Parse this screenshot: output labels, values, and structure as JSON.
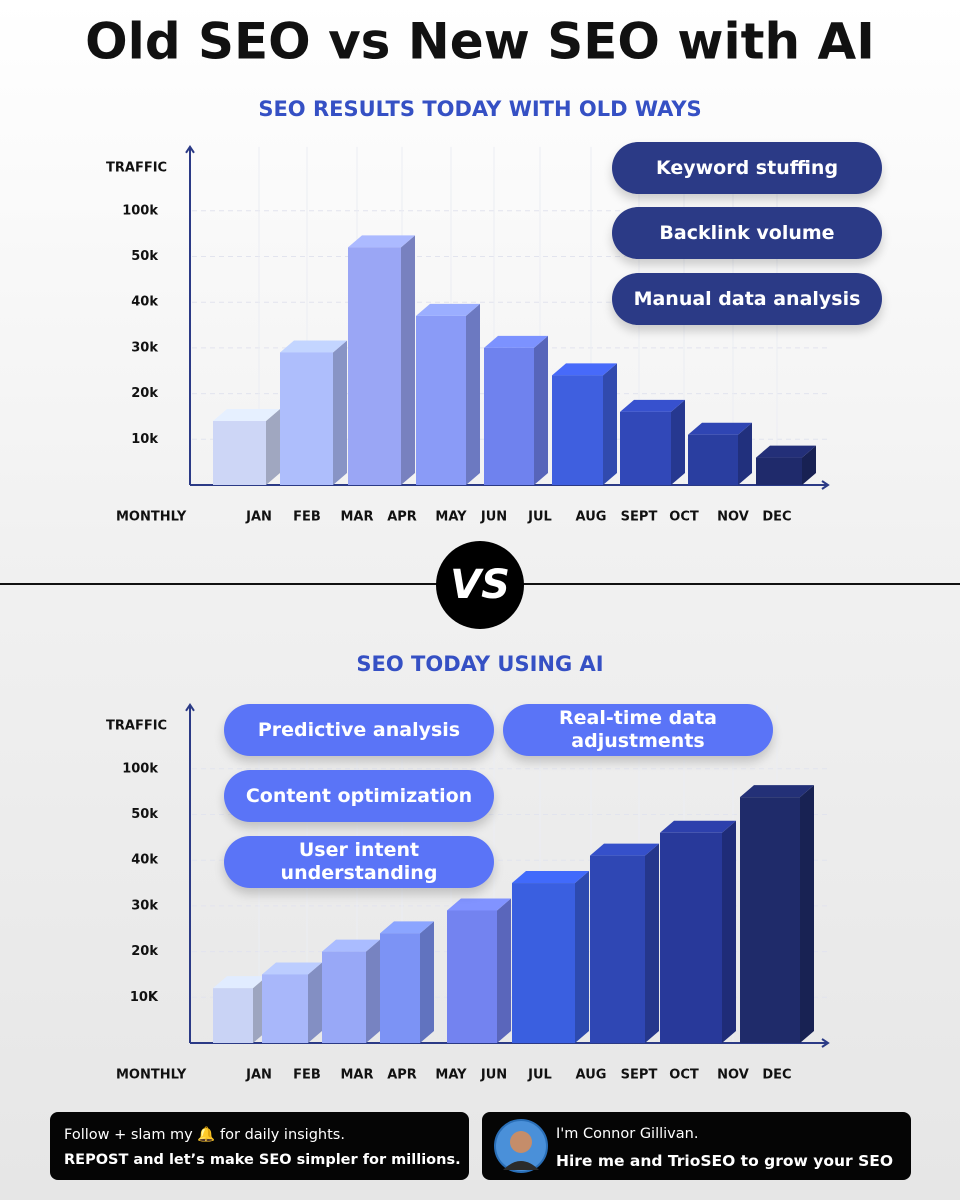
{
  "title": "Old SEO vs New SEO with AI",
  "chart_data": [
    {
      "type": "bar",
      "title": "SEO RESULTS TODAY WITH OLD WAYS",
      "y_label": "TRAFFIC",
      "x_label": "MONTHLY",
      "x_labels": [
        "JAN",
        "FEB",
        "MAR",
        "APR",
        "MAY",
        "JUN",
        "JUL",
        "AUG",
        "SEPT",
        "OCT",
        "NOV",
        "DEC"
      ],
      "values": [
        14000,
        29000,
        60000,
        37000,
        30000,
        24000,
        16000,
        11000,
        6000
      ],
      "colors": [
        "#cdd6f6",
        "#aebefc",
        "#9aa6f5",
        "#8a9bf7",
        "#6f82ee",
        "#3f5fdf",
        "#3148b8",
        "#2a3ea0",
        "#1f2a6b"
      ],
      "ylim": [
        0,
        170000
      ],
      "yticks": [
        {
          "value": 10000,
          "label": "10k"
        },
        {
          "value": 20000,
          "label": "20k"
        },
        {
          "value": 30000,
          "label": "30k"
        },
        {
          "value": 40000,
          "label": "40k"
        },
        {
          "value": 50000,
          "label": "50k"
        },
        {
          "value": 100000,
          "label": "100k"
        }
      ],
      "callouts": [
        "Keyword stuffing",
        "Backlink volume",
        "Manual data analysis"
      ]
    },
    {
      "type": "bar",
      "title": "SEO TODAY USING AI",
      "y_label": "TRAFFIC",
      "x_label": "MONTHLY",
      "x_labels": [
        "JAN",
        "FEB",
        "MAR",
        "APR",
        "MAY",
        "JUN",
        "JUL",
        "AUG",
        "SEPT",
        "OCT",
        "NOV",
        "DEC"
      ],
      "values": [
        12000,
        15000,
        20000,
        24000,
        29000,
        35000,
        41000,
        46000,
        69000
      ],
      "colors": [
        "#c9d3f5",
        "#a8b7fa",
        "#98a8f7",
        "#7c93f5",
        "#7383f0",
        "#3a5fe0",
        "#2f47b4",
        "#28399a",
        "#1f2b6a"
      ],
      "ylim": [
        0,
        170000
      ],
      "yticks": [
        {
          "value": 10000,
          "label": "10K"
        },
        {
          "value": 20000,
          "label": "20k"
        },
        {
          "value": 30000,
          "label": "30k"
        },
        {
          "value": 40000,
          "label": "40k"
        },
        {
          "value": 50000,
          "label": "50k"
        },
        {
          "value": 100000,
          "label": "100k"
        }
      ],
      "callouts": [
        "Predictive analysis",
        "Real-time data adjustments",
        "Content optimization",
        "User intent understanding"
      ]
    }
  ],
  "vs_badge": "VS",
  "footer": {
    "left_lines": [
      "Follow + slam my 🔔 for daily insights.",
      "REPOST and let’s make SEO simpler for millions."
    ],
    "right_lines": [
      "I'm Connor Gillivan.",
      "Hire me and TrioSEO to grow your SEO"
    ]
  }
}
